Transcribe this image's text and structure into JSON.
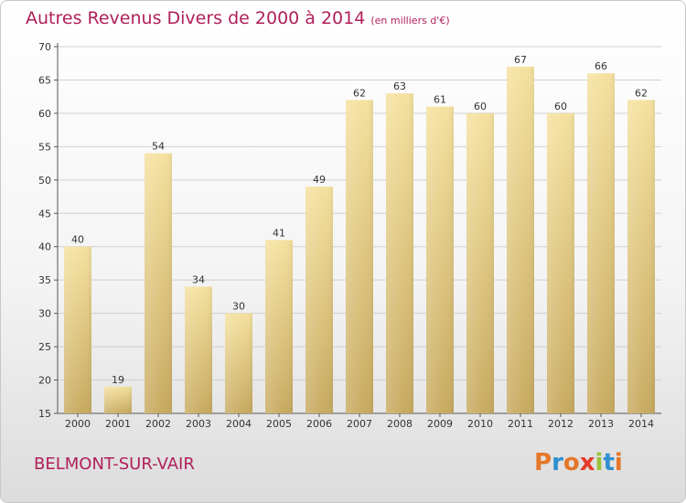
{
  "chart_data": {
    "type": "bar",
    "title": "Autres Revenus Divers de 2000 à 2014",
    "subtitle": "(en milliers d'€)",
    "categories": [
      "2000",
      "2001",
      "2002",
      "2003",
      "2004",
      "2005",
      "2006",
      "2007",
      "2008",
      "2009",
      "2010",
      "2011",
      "2012",
      "2013",
      "2014"
    ],
    "values": [
      40,
      19,
      54,
      34,
      30,
      41,
      49,
      62,
      63,
      61,
      60,
      67,
      60,
      66,
      62
    ],
    "ylim": [
      15,
      70
    ],
    "yticks": [
      15,
      20,
      25,
      30,
      35,
      40,
      45,
      50,
      55,
      60,
      65,
      70
    ],
    "grid": true,
    "colors": {
      "bar_light": "#f3dc96",
      "bar_dark": "#c9ac63",
      "title": "#b0205a"
    }
  },
  "footer": {
    "location": "BELMONT-SUR-VAIR",
    "brand": "Proxiti",
    "brand_colors": [
      "#e5772a",
      "#2f8fd0",
      "#e5772a",
      "#e63a2a",
      "#9ac23c",
      "#2f8fd0",
      "#e5772a"
    ]
  }
}
